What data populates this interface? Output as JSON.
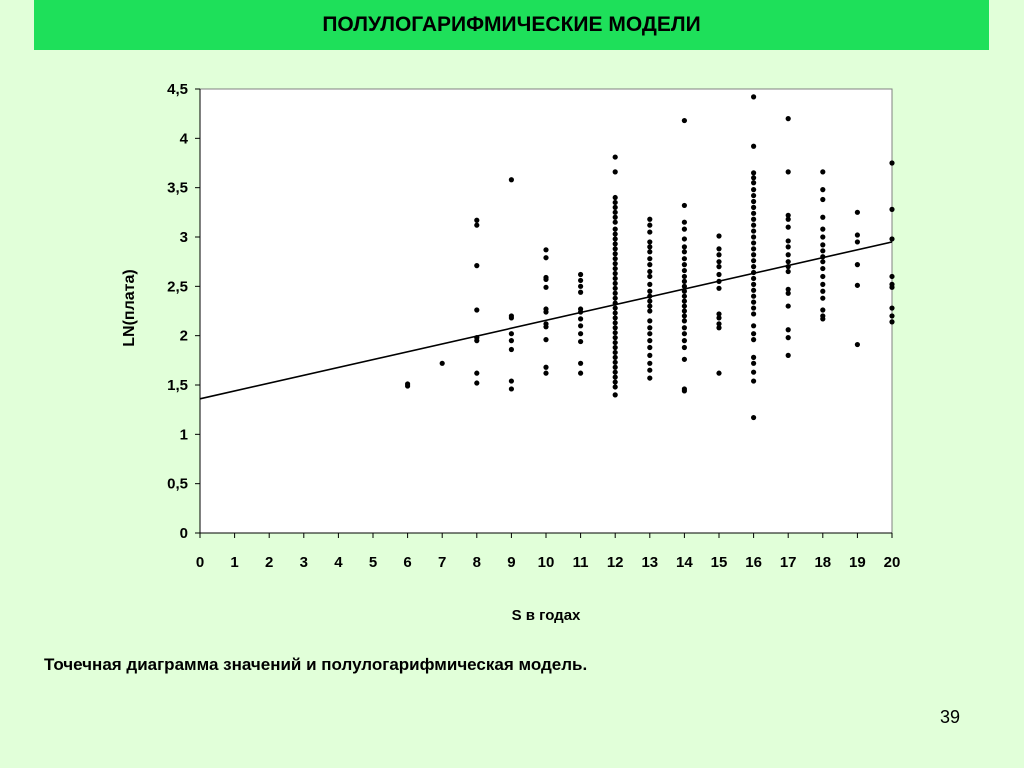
{
  "slide": {
    "title": "ПОЛУЛОГАРИФМИЧЕСКИЕ МОДЕЛИ",
    "caption": "Точечная диаграмма значений и полулогарифмическая модель.",
    "page_number": "39"
  },
  "chart_data": {
    "type": "scatter",
    "title": "",
    "xlabel": "S в годах",
    "ylabel": "LN(плата)",
    "xlim": [
      0,
      20
    ],
    "ylim": [
      0,
      4.5
    ],
    "x_ticks": [
      "0",
      "1",
      "2",
      "3",
      "4",
      "5",
      "6",
      "7",
      "8",
      "9",
      "10",
      "11",
      "12",
      "13",
      "14",
      "15",
      "16",
      "17",
      "18",
      "19",
      "20"
    ],
    "y_ticks": [
      "0",
      "0,5",
      "1",
      "1,5",
      "2",
      "2,5",
      "3",
      "3,5",
      "4",
      "4,5"
    ],
    "grid": false,
    "legend": "none",
    "point_color": "#000000",
    "trend_line": {
      "x": [
        0,
        20
      ],
      "y": [
        1.36,
        2.95
      ]
    },
    "points": [
      [
        6,
        1.49
      ],
      [
        6,
        1.51
      ],
      [
        7,
        1.72
      ],
      [
        8,
        3.17
      ],
      [
        8,
        3.12
      ],
      [
        8,
        2.71
      ],
      [
        8,
        2.26
      ],
      [
        8,
        1.98
      ],
      [
        8,
        1.95
      ],
      [
        8,
        1.62
      ],
      [
        8,
        1.52
      ],
      [
        9,
        3.58
      ],
      [
        9,
        2.2
      ],
      [
        9,
        2.18
      ],
      [
        9,
        2.02
      ],
      [
        9,
        1.95
      ],
      [
        9,
        1.86
      ],
      [
        9,
        1.54
      ],
      [
        9,
        1.46
      ],
      [
        10,
        2.87
      ],
      [
        10,
        2.79
      ],
      [
        10,
        2.59
      ],
      [
        10,
        2.57
      ],
      [
        10,
        2.49
      ],
      [
        10,
        2.27
      ],
      [
        10,
        2.24
      ],
      [
        10,
        2.12
      ],
      [
        10,
        2.09
      ],
      [
        10,
        1.96
      ],
      [
        10,
        1.68
      ],
      [
        10,
        1.62
      ],
      [
        11,
        2.62
      ],
      [
        11,
        2.56
      ],
      [
        11,
        2.5
      ],
      [
        11,
        2.44
      ],
      [
        11,
        2.27
      ],
      [
        11,
        2.24
      ],
      [
        11,
        2.17
      ],
      [
        11,
        2.1
      ],
      [
        11,
        2.02
      ],
      [
        11,
        1.94
      ],
      [
        11,
        1.72
      ],
      [
        11,
        1.62
      ],
      [
        12,
        3.81
      ],
      [
        12,
        3.66
      ],
      [
        12,
        3.4
      ],
      [
        12,
        3.35
      ],
      [
        12,
        3.3
      ],
      [
        12,
        3.25
      ],
      [
        12,
        3.2
      ],
      [
        12,
        3.15
      ],
      [
        12,
        3.08
      ],
      [
        12,
        3.03
      ],
      [
        12,
        2.98
      ],
      [
        12,
        2.93
      ],
      [
        12,
        2.88
      ],
      [
        12,
        2.83
      ],
      [
        12,
        2.78
      ],
      [
        12,
        2.73
      ],
      [
        12,
        2.68
      ],
      [
        12,
        2.63
      ],
      [
        12,
        2.58
      ],
      [
        12,
        2.53
      ],
      [
        12,
        2.48
      ],
      [
        12,
        2.43
      ],
      [
        12,
        2.38
      ],
      [
        12,
        2.33
      ],
      [
        12,
        2.28
      ],
      [
        12,
        2.23
      ],
      [
        12,
        2.18
      ],
      [
        12,
        2.13
      ],
      [
        12,
        2.08
      ],
      [
        12,
        2.03
      ],
      [
        12,
        1.98
      ],
      [
        12,
        1.93
      ],
      [
        12,
        1.88
      ],
      [
        12,
        1.83
      ],
      [
        12,
        1.78
      ],
      [
        12,
        1.73
      ],
      [
        12,
        1.68
      ],
      [
        12,
        1.63
      ],
      [
        12,
        1.58
      ],
      [
        12,
        1.53
      ],
      [
        12,
        1.48
      ],
      [
        12,
        1.4
      ],
      [
        13,
        3.18
      ],
      [
        13,
        3.12
      ],
      [
        13,
        3.05
      ],
      [
        13,
        2.95
      ],
      [
        13,
        2.9
      ],
      [
        13,
        2.85
      ],
      [
        13,
        2.78
      ],
      [
        13,
        2.72
      ],
      [
        13,
        2.65
      ],
      [
        13,
        2.6
      ],
      [
        13,
        2.52
      ],
      [
        13,
        2.45
      ],
      [
        13,
        2.4
      ],
      [
        13,
        2.35
      ],
      [
        13,
        2.3
      ],
      [
        13,
        2.25
      ],
      [
        13,
        2.15
      ],
      [
        13,
        2.08
      ],
      [
        13,
        2.02
      ],
      [
        13,
        1.95
      ],
      [
        13,
        1.88
      ],
      [
        13,
        1.8
      ],
      [
        13,
        1.72
      ],
      [
        13,
        1.65
      ],
      [
        13,
        1.57
      ],
      [
        14,
        4.18
      ],
      [
        14,
        3.32
      ],
      [
        14,
        3.15
      ],
      [
        14,
        3.08
      ],
      [
        14,
        2.98
      ],
      [
        14,
        2.9
      ],
      [
        14,
        2.85
      ],
      [
        14,
        2.78
      ],
      [
        14,
        2.72
      ],
      [
        14,
        2.66
      ],
      [
        14,
        2.6
      ],
      [
        14,
        2.55
      ],
      [
        14,
        2.5
      ],
      [
        14,
        2.45
      ],
      [
        14,
        2.4
      ],
      [
        14,
        2.35
      ],
      [
        14,
        2.3
      ],
      [
        14,
        2.25
      ],
      [
        14,
        2.2
      ],
      [
        14,
        2.15
      ],
      [
        14,
        2.08
      ],
      [
        14,
        2.02
      ],
      [
        14,
        1.95
      ],
      [
        14,
        1.88
      ],
      [
        14,
        1.76
      ],
      [
        14,
        1.46
      ],
      [
        14,
        1.44
      ],
      [
        15,
        3.01
      ],
      [
        15,
        2.88
      ],
      [
        15,
        2.82
      ],
      [
        15,
        2.75
      ],
      [
        15,
        2.7
      ],
      [
        15,
        2.62
      ],
      [
        15,
        2.55
      ],
      [
        15,
        2.48
      ],
      [
        15,
        2.22
      ],
      [
        15,
        2.18
      ],
      [
        15,
        2.12
      ],
      [
        15,
        2.08
      ],
      [
        15,
        1.62
      ],
      [
        16,
        4.42
      ],
      [
        16,
        3.92
      ],
      [
        16,
        3.65
      ],
      [
        16,
        3.6
      ],
      [
        16,
        3.55
      ],
      [
        16,
        3.48
      ],
      [
        16,
        3.42
      ],
      [
        16,
        3.36
      ],
      [
        16,
        3.3
      ],
      [
        16,
        3.24
      ],
      [
        16,
        3.18
      ],
      [
        16,
        3.12
      ],
      [
        16,
        3.06
      ],
      [
        16,
        3
      ],
      [
        16,
        2.94
      ],
      [
        16,
        2.88
      ],
      [
        16,
        2.82
      ],
      [
        16,
        2.76
      ],
      [
        16,
        2.7
      ],
      [
        16,
        2.64
      ],
      [
        16,
        2.58
      ],
      [
        16,
        2.52
      ],
      [
        16,
        2.46
      ],
      [
        16,
        2.4
      ],
      [
        16,
        2.34
      ],
      [
        16,
        2.28
      ],
      [
        16,
        2.22
      ],
      [
        16,
        2.1
      ],
      [
        16,
        2.02
      ],
      [
        16,
        1.96
      ],
      [
        16,
        1.78
      ],
      [
        16,
        1.72
      ],
      [
        16,
        1.63
      ],
      [
        16,
        1.54
      ],
      [
        16,
        1.17
      ],
      [
        17,
        4.2
      ],
      [
        17,
        3.66
      ],
      [
        17,
        3.22
      ],
      [
        17,
        3.18
      ],
      [
        17,
        3.1
      ],
      [
        17,
        2.96
      ],
      [
        17,
        2.9
      ],
      [
        17,
        2.82
      ],
      [
        17,
        2.75
      ],
      [
        17,
        2.7
      ],
      [
        17,
        2.65
      ],
      [
        17,
        2.47
      ],
      [
        17,
        2.43
      ],
      [
        17,
        2.3
      ],
      [
        17,
        2.06
      ],
      [
        17,
        1.98
      ],
      [
        17,
        1.8
      ],
      [
        18,
        3.66
      ],
      [
        18,
        3.48
      ],
      [
        18,
        3.38
      ],
      [
        18,
        3.2
      ],
      [
        18,
        3.08
      ],
      [
        18,
        3
      ],
      [
        18,
        2.92
      ],
      [
        18,
        2.86
      ],
      [
        18,
        2.8
      ],
      [
        18,
        2.75
      ],
      [
        18,
        2.68
      ],
      [
        18,
        2.6
      ],
      [
        18,
        2.52
      ],
      [
        18,
        2.45
      ],
      [
        18,
        2.38
      ],
      [
        18,
        2.26
      ],
      [
        18,
        2.2
      ],
      [
        18,
        2.17
      ],
      [
        19,
        3.25
      ],
      [
        19,
        3.02
      ],
      [
        19,
        2.95
      ],
      [
        19,
        2.72
      ],
      [
        19,
        2.51
      ],
      [
        19,
        1.91
      ],
      [
        20,
        3.75
      ],
      [
        20,
        3.28
      ],
      [
        20,
        2.98
      ],
      [
        20,
        2.6
      ],
      [
        20,
        2.52
      ],
      [
        20,
        2.49
      ],
      [
        20,
        2.28
      ],
      [
        20,
        2.2
      ],
      [
        20,
        2.14
      ]
    ]
  }
}
